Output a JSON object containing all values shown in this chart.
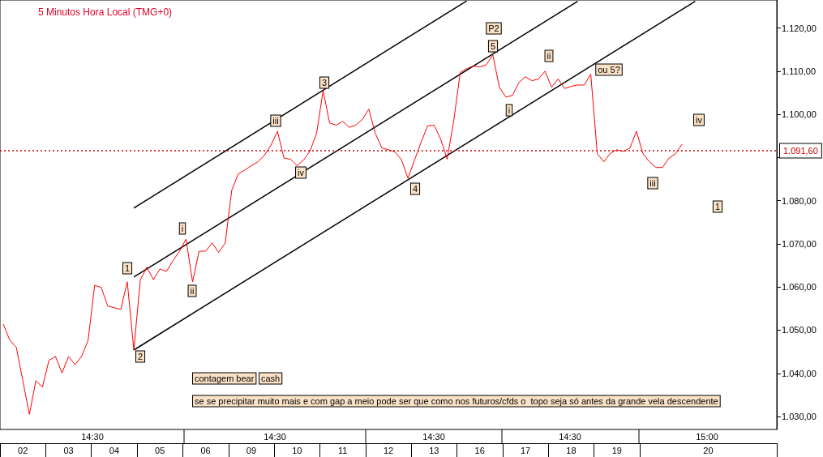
{
  "chart_data": {
    "type": "line",
    "title": "5 Minutos Hora Local (TMG+0)",
    "marker": "none",
    "grid": false,
    "categories": [
      null,
      null,
      null,
      "02",
      null,
      null,
      null,
      null,
      null,
      null,
      "03",
      null,
      null,
      null,
      null,
      null,
      null,
      "04",
      null,
      null,
      null,
      null,
      null,
      null,
      "05",
      null,
      null,
      null,
      null,
      null,
      null,
      "06",
      null,
      null,
      null,
      null,
      null,
      null,
      "09",
      null,
      null,
      null,
      null,
      null,
      null,
      "10",
      null,
      null,
      null,
      null,
      null,
      null,
      "11",
      null,
      null,
      null,
      null,
      null,
      null,
      "12",
      null,
      null,
      null,
      null,
      null,
      null,
      "13",
      null,
      null,
      null,
      null,
      null,
      null,
      "16",
      null,
      null,
      null,
      null,
      null,
      null,
      "17",
      null,
      null,
      null,
      null,
      null,
      null,
      "18",
      null,
      null,
      null,
      null,
      null,
      null,
      "19",
      null,
      null,
      null,
      null,
      null,
      null,
      null,
      null,
      null,
      null,
      null,
      null,
      null,
      "20",
      null,
      null,
      null,
      null,
      null,
      null,
      null,
      null,
      null,
      null
    ],
    "ylim": [
      1027,
      1126.5
    ],
    "yticks": [
      {
        "value": 1030,
        "label": "1.030,00"
      },
      {
        "value": 1040,
        "label": "1.040,00"
      },
      {
        "value": 1050,
        "label": "1.050,00"
      },
      {
        "value": 1060,
        "label": "1.060,00"
      },
      {
        "value": 1070,
        "label": "1.070,00"
      },
      {
        "value": 1080,
        "label": "1.080,00"
      },
      {
        "value": 1090,
        "label": null
      },
      {
        "value": 1100,
        "label": "1.100,00"
      },
      {
        "value": 1110,
        "label": "1.110,00"
      },
      {
        "value": 1120,
        "label": "1.120,00"
      }
    ],
    "ref_lines": [
      {
        "axis": "y",
        "value": 1091.6,
        "label": "1.091,60",
        "color": "#cc0000",
        "line_style": "dotted"
      }
    ],
    "series": [
      {
        "color": "#ff0000",
        "values": [
          1051.4,
          1047.7,
          1046.0,
          1038.3,
          1030.5,
          1038.3,
          1036.8,
          1043.0,
          1043.9,
          1040.1,
          1043.9,
          1042.0,
          1043.9,
          1047.7,
          1060.4,
          1059.9,
          1055.6,
          1055.2,
          1054.8,
          1061.2,
          1045.4,
          1061.7,
          1064.6,
          1061.7,
          1064.2,
          1063.6,
          1066.1,
          1068.3,
          1071.1,
          1061.2,
          1068.3,
          1068.3,
          1070.2,
          1068.0,
          1070.2,
          1082.4,
          1086.2,
          1087.1,
          1088.1,
          1089.0,
          1090.5,
          1092.8,
          1096.1,
          1089.9,
          1089.6,
          1088.1,
          1089.4,
          1091.5,
          1095.6,
          1105.5,
          1098.0,
          1097.5,
          1098.4,
          1097.0,
          1097.5,
          1098.8,
          1101.2,
          1095.6,
          1092.2,
          1091.8,
          1091.3,
          1089.5,
          1085.2,
          1089.4,
          1093.5,
          1097.3,
          1097.5,
          1094.3,
          1089.6,
          1098.4,
          1109.7,
          1110.6,
          1111.2,
          1111.0,
          1111.5,
          1113.8,
          1106.3,
          1104.0,
          1104.4,
          1107.4,
          1108.7,
          1107.8,
          1108.2,
          1110.0,
          1106.3,
          1108.2,
          1106.0,
          1106.5,
          1106.8,
          1106.8,
          1109.3,
          1090.9,
          1089.0,
          1091.0,
          1091.8,
          1091.4,
          1092.2,
          1096.1,
          1090.9,
          1089.0,
          1087.7,
          1087.7,
          1089.9,
          1090.9,
          1093.1,
          null,
          null,
          null,
          null,
          null,
          null,
          null,
          null,
          null,
          null,
          null,
          null,
          null,
          null
        ]
      },
      {
        "type": "line",
        "color": "#000000",
        "values": [
          null,
          null,
          null,
          null,
          null,
          null,
          null,
          null,
          null,
          null,
          null,
          null,
          null,
          null,
          null,
          null,
          null,
          null,
          null,
          null,
          1078.3,
          null,
          null,
          null,
          null,
          null,
          null,
          null,
          null,
          null,
          null,
          null,
          null,
          null,
          null,
          null,
          null,
          null,
          null,
          null,
          null,
          null,
          null,
          null,
          null,
          null,
          null,
          null,
          null,
          null,
          null,
          null,
          null,
          null,
          null,
          null,
          null,
          null,
          null,
          null,
          null,
          null,
          null,
          null,
          null,
          null,
          null,
          null,
          null,
          null,
          null,
          1126.3,
          null,
          null,
          null,
          null,
          null,
          null,
          null,
          null,
          null,
          null,
          null,
          null,
          null,
          null,
          null,
          null,
          null,
          null,
          null,
          null,
          null,
          null,
          null,
          null,
          null,
          null,
          null,
          null,
          null,
          null,
          null,
          null,
          null,
          null,
          null,
          null,
          null,
          null,
          null,
          null,
          null,
          null,
          null,
          null,
          null,
          null,
          null
        ]
      },
      {
        "type": "line",
        "color": "#000000",
        "values": [
          null,
          null,
          null,
          null,
          null,
          null,
          null,
          null,
          null,
          null,
          null,
          null,
          null,
          null,
          null,
          null,
          null,
          null,
          null,
          null,
          1062.3,
          null,
          null,
          null,
          null,
          null,
          null,
          null,
          null,
          null,
          null,
          null,
          null,
          null,
          null,
          null,
          null,
          null,
          null,
          null,
          null,
          null,
          null,
          null,
          null,
          null,
          null,
          null,
          null,
          null,
          null,
          null,
          null,
          null,
          null,
          null,
          null,
          null,
          null,
          null,
          null,
          null,
          null,
          null,
          null,
          null,
          null,
          null,
          null,
          null,
          null,
          null,
          null,
          null,
          null,
          null,
          null,
          null,
          null,
          null,
          null,
          null,
          null,
          null,
          null,
          null,
          null,
          null,
          1126.2,
          null,
          null,
          null,
          null,
          null,
          null,
          null,
          null,
          null,
          null,
          null,
          null,
          null,
          null,
          null,
          null,
          null,
          null,
          null,
          null,
          null,
          null,
          null,
          null,
          null,
          null,
          null,
          null,
          null,
          null
        ]
      },
      {
        "type": "line",
        "color": "#000000",
        "values": [
          null,
          null,
          null,
          null,
          null,
          null,
          null,
          null,
          null,
          null,
          null,
          null,
          null,
          null,
          null,
          null,
          null,
          null,
          null,
          null,
          1045.4,
          null,
          null,
          null,
          null,
          null,
          null,
          null,
          null,
          null,
          null,
          null,
          null,
          null,
          null,
          null,
          null,
          null,
          null,
          null,
          null,
          null,
          null,
          null,
          null,
          null,
          null,
          null,
          null,
          null,
          null,
          null,
          null,
          null,
          null,
          null,
          null,
          null,
          null,
          null,
          null,
          null,
          null,
          null,
          null,
          null,
          null,
          null,
          null,
          null,
          null,
          null,
          null,
          null,
          null,
          null,
          null,
          null,
          null,
          null,
          null,
          null,
          null,
          null,
          null,
          null,
          null,
          null,
          null,
          null,
          null,
          null,
          null,
          null,
          null,
          null,
          null,
          null,
          null,
          null,
          null,
          null,
          null,
          null,
          null,
          null,
          1126.2,
          null,
          null,
          null,
          null,
          null,
          null,
          null,
          null,
          null,
          null,
          null,
          null
        ]
      }
    ],
    "annotations": [
      "1",
      "2",
      "i",
      "ii",
      "iii",
      "iv",
      "3",
      "4",
      "P2",
      "5",
      "i",
      "ii",
      "ou 5?",
      "iii",
      "iv",
      "1",
      "contagem bear",
      "cash",
      "se se precipitar muito mais e com gap a meio pode ser que como nos futuros/cfds o  topo seja só antes da grande vela descendente",
      "14:30",
      "14:30",
      "14:30",
      "14:30",
      "15:00"
    ]
  }
}
